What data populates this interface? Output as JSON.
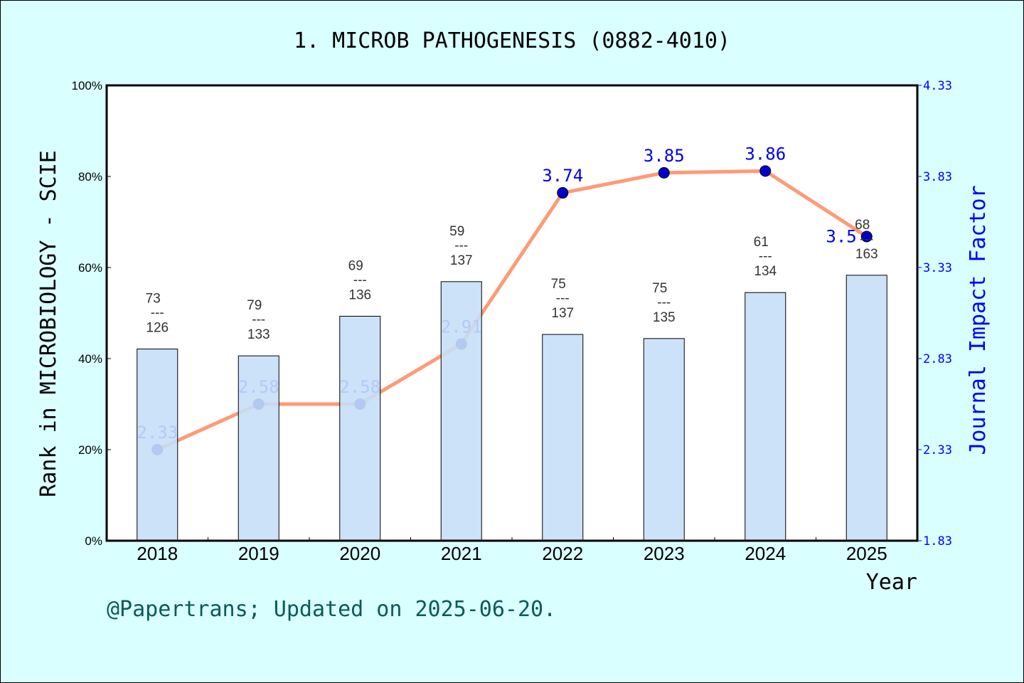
{
  "chart_data": {
    "type": "bar+line",
    "title": "1. MICROB PATHOGENESIS (0882-4010)",
    "xlabel": "Year",
    "ylabel_left": "Rank in MICROBIOLOGY - SCIE",
    "ylabel_right": "Journal Impact Factor",
    "categories": [
      "2018",
      "2019",
      "2020",
      "2021",
      "2022",
      "2023",
      "2024",
      "2025"
    ],
    "left_axis": {
      "range": [
        0,
        100
      ],
      "ticks": [
        "0%",
        "20%",
        "40%",
        "60%",
        "80%",
        "100%"
      ]
    },
    "right_axis": {
      "range": [
        1.83,
        4.33
      ],
      "ticks": [
        "1.83",
        "2.33",
        "2.83",
        "3.33",
        "3.83",
        "4.33"
      ]
    },
    "rank": [
      73,
      79,
      69,
      59,
      75,
      75,
      61,
      68
    ],
    "total": [
      126,
      133,
      136,
      137,
      137,
      135,
      134,
      163
    ],
    "rank_percentile": [
      42.1,
      40.6,
      49.3,
      56.9,
      45.3,
      44.4,
      54.5,
      58.3
    ],
    "impact_factor": [
      "2.33",
      "2.58",
      "2.58",
      "2.91",
      "3.74",
      "3.85",
      "3.86",
      "3.5"
    ],
    "grid": false,
    "colors": {
      "bar": "#c6dff7",
      "line": "#ff9a76",
      "point": "#0000cc",
      "if_text": "#0000ee",
      "background": "#d9ffff"
    }
  },
  "footer": "@Papertrans; Updated on 2025-06-20."
}
